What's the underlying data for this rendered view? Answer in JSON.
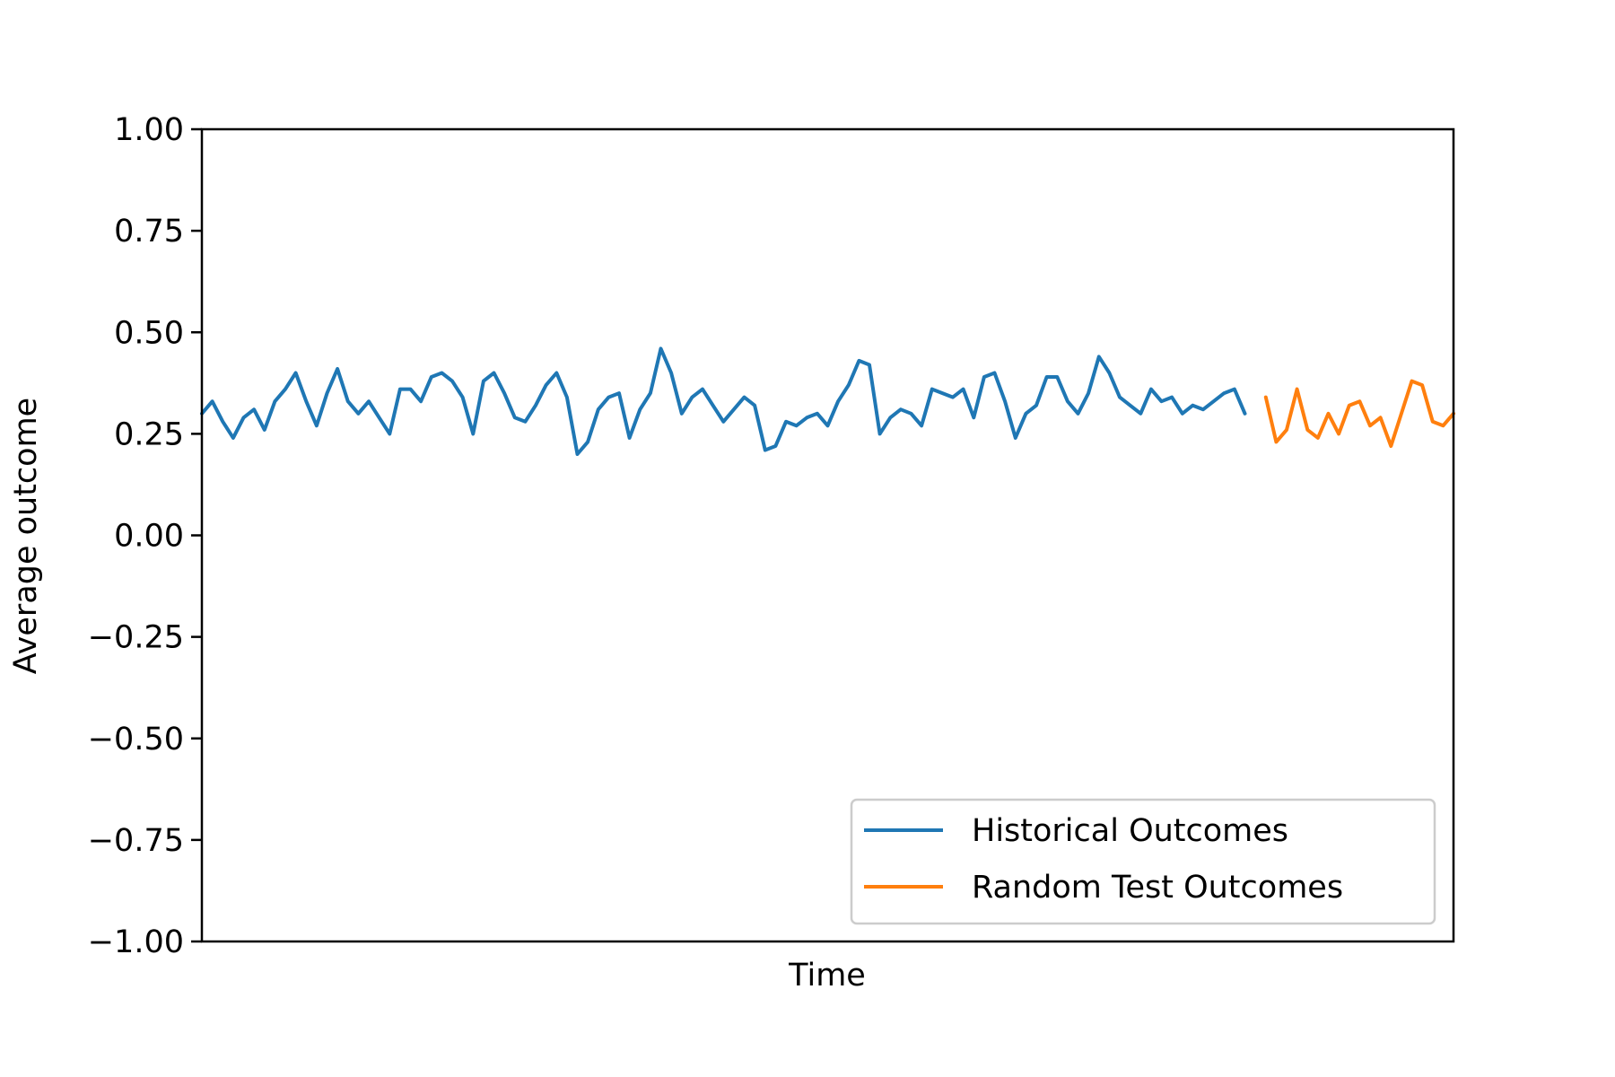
{
  "chart_data": {
    "type": "line",
    "title": "",
    "xlabel": "Time",
    "ylabel": "Average outcome",
    "ylim": [
      -1.0,
      1.0
    ],
    "y_ticks": [
      -1.0,
      -0.75,
      -0.5,
      -0.25,
      0.0,
      0.25,
      0.5,
      0.75,
      1.0
    ],
    "y_tick_labels": [
      "−1.00",
      "−0.75",
      "−0.50",
      "−0.25",
      "0.00",
      "0.25",
      "0.50",
      "0.75",
      "1.00"
    ],
    "x_ticks_shown": false,
    "grid": false,
    "legend_position": "lower right",
    "x_range": [
      0,
      120
    ],
    "series": [
      {
        "name": "Historical Outcomes",
        "color": "#1f77b4",
        "x": [
          0,
          1,
          2,
          3,
          4,
          5,
          6,
          7,
          8,
          9,
          10,
          11,
          12,
          13,
          14,
          15,
          16,
          17,
          18,
          19,
          20,
          21,
          22,
          23,
          24,
          25,
          26,
          27,
          28,
          29,
          30,
          31,
          32,
          33,
          34,
          35,
          36,
          37,
          38,
          39,
          40,
          41,
          42,
          43,
          44,
          45,
          46,
          47,
          48,
          49,
          50,
          51,
          52,
          53,
          54,
          55,
          56,
          57,
          58,
          59,
          60,
          61,
          62,
          63,
          64,
          65,
          66,
          67,
          68,
          69,
          70,
          71,
          72,
          73,
          74,
          75,
          76,
          77,
          78,
          79,
          80,
          81,
          82,
          83,
          84,
          85,
          86,
          87,
          88,
          89,
          90,
          91,
          92,
          93,
          94,
          95,
          96,
          97,
          98,
          99,
          100
        ],
        "values": [
          0.3,
          0.33,
          0.28,
          0.24,
          0.29,
          0.31,
          0.26,
          0.33,
          0.36,
          0.4,
          0.33,
          0.27,
          0.35,
          0.41,
          0.33,
          0.3,
          0.33,
          0.29,
          0.25,
          0.36,
          0.36,
          0.33,
          0.39,
          0.4,
          0.38,
          0.34,
          0.25,
          0.38,
          0.4,
          0.35,
          0.29,
          0.28,
          0.32,
          0.37,
          0.4,
          0.34,
          0.2,
          0.23,
          0.31,
          0.34,
          0.35,
          0.24,
          0.31,
          0.35,
          0.46,
          0.4,
          0.3,
          0.34,
          0.36,
          0.32,
          0.28,
          0.31,
          0.34,
          0.32,
          0.21,
          0.22,
          0.28,
          0.27,
          0.29,
          0.3,
          0.27,
          0.33,
          0.37,
          0.43,
          0.42,
          0.25,
          0.29,
          0.31,
          0.3,
          0.27,
          0.36,
          0.35,
          0.34,
          0.36,
          0.29,
          0.39,
          0.4,
          0.33,
          0.24,
          0.3,
          0.32,
          0.39,
          0.39,
          0.33,
          0.3,
          0.35,
          0.44,
          0.4,
          0.34,
          0.32,
          0.3,
          0.36,
          0.33,
          0.34,
          0.3,
          0.32,
          0.31,
          0.33,
          0.35,
          0.36,
          0.3
        ]
      },
      {
        "name": "Random Test Outcomes",
        "color": "#ff7f0e",
        "x": [
          102,
          103,
          104,
          105,
          106,
          107,
          108,
          109,
          110,
          111,
          112,
          113,
          114,
          115,
          116,
          117,
          118,
          119,
          120
        ],
        "values": [
          0.34,
          0.23,
          0.26,
          0.36,
          0.26,
          0.24,
          0.3,
          0.25,
          0.32,
          0.33,
          0.27,
          0.29,
          0.22,
          0.3,
          0.38,
          0.37,
          0.28,
          0.27,
          0.3
        ]
      }
    ]
  }
}
